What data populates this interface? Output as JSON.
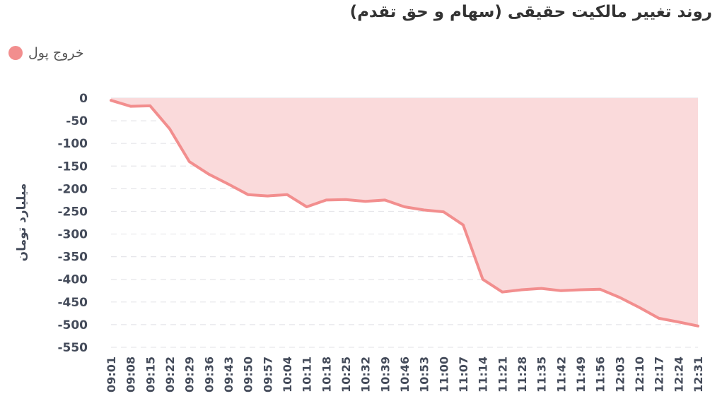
{
  "title": "روند تغییر مالکیت حقیقی (سهام و حق تقدم)",
  "legend": {
    "label": "خروج پول",
    "color": "#f28e8e"
  },
  "chart_data": {
    "type": "area",
    "title": "روند تغییر مالکیت حقیقی (سهام و حق تقدم)",
    "ylabel": "میلیارد تومان",
    "xlabel": "",
    "ylim": [
      -550,
      0
    ],
    "yticks": [
      0,
      -50,
      -100,
      -150,
      -200,
      -250,
      -300,
      -350,
      -400,
      -450,
      -500,
      -550
    ],
    "grid": true,
    "legend_position": "top-left",
    "categories": [
      "09:01",
      "09:08",
      "09:15",
      "09:22",
      "09:29",
      "09:36",
      "09:43",
      "09:50",
      "09:57",
      "10:04",
      "10:11",
      "10:18",
      "10:25",
      "10:32",
      "10:39",
      "10:46",
      "10:53",
      "11:00",
      "11:07",
      "11:14",
      "11:21",
      "11:28",
      "11:35",
      "11:42",
      "11:49",
      "11:56",
      "12:03",
      "12:10",
      "12:17",
      "12:24",
      "12:31"
    ],
    "series": [
      {
        "name": "خروج پول",
        "color": "#f28e8e",
        "fill": "#fadadb",
        "values": [
          -5,
          -18,
          -17,
          -68,
          -140,
          -168,
          -190,
          -213,
          -216,
          -213,
          -240,
          -225,
          -224,
          -228,
          -225,
          -240,
          -247,
          -251,
          -280,
          -400,
          -428,
          -423,
          -420,
          -425,
          -423,
          -422,
          -440,
          -462,
          -486,
          -494,
          -503
        ]
      }
    ]
  }
}
